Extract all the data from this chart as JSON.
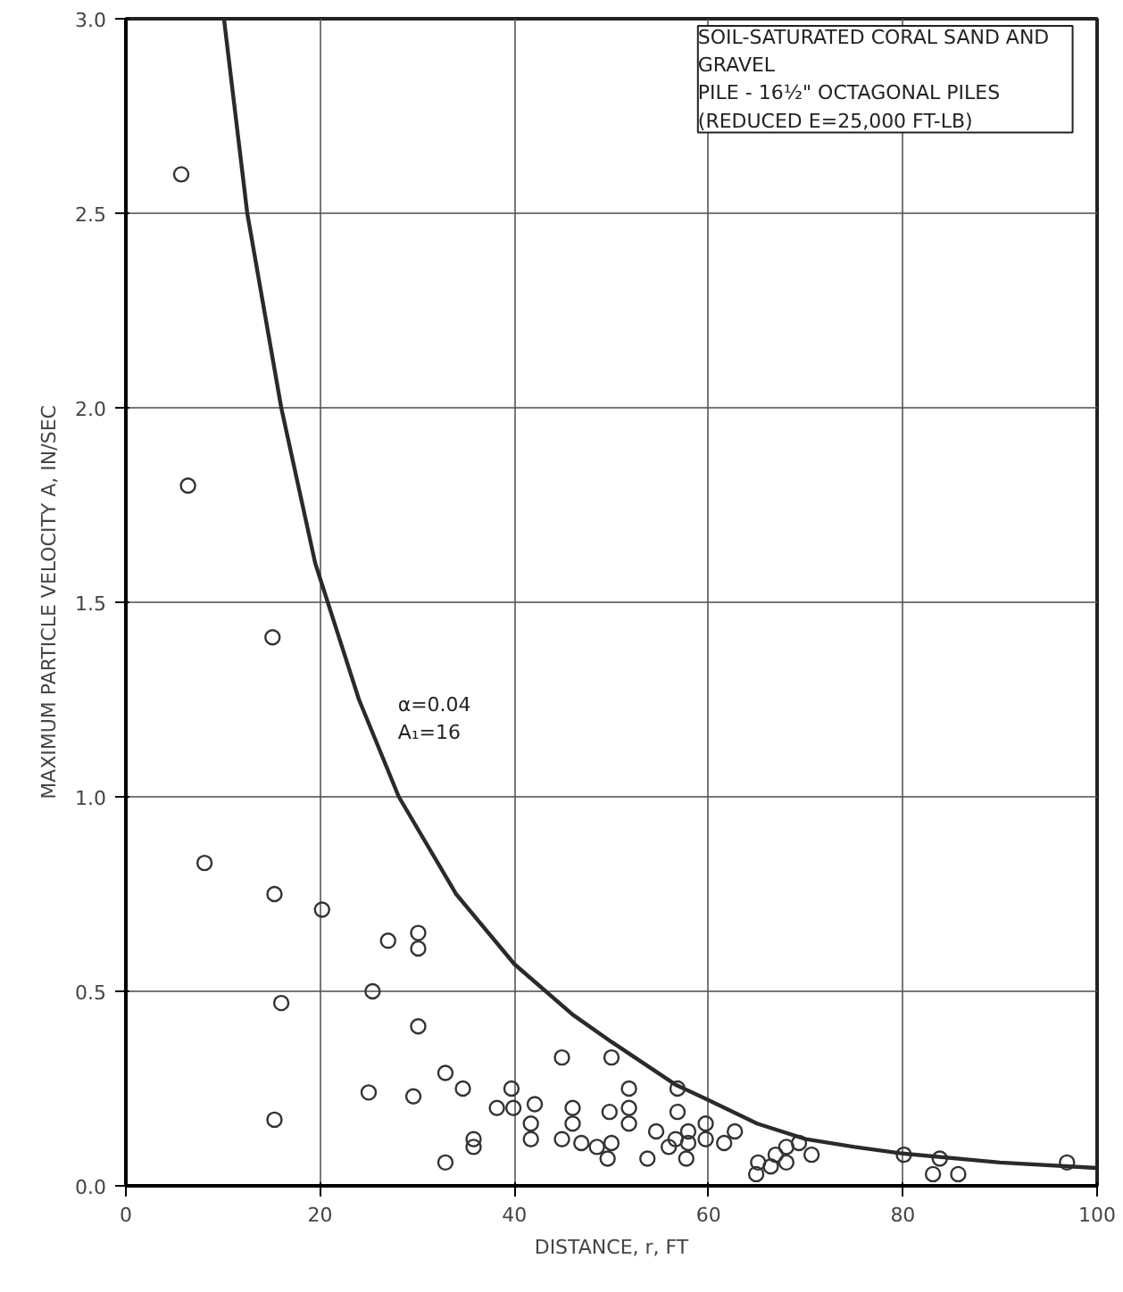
{
  "chart_data": {
    "type": "scatter",
    "xlabel": "DISTANCE, r, FT",
    "ylabel": "MAXIMUM PARTICLE VELOCITY A, IN/SEC",
    "xlim": [
      0,
      100
    ],
    "ylim": [
      0,
      3.0
    ],
    "xticks": [
      0,
      20,
      40,
      60,
      80,
      100
    ],
    "yticks": [
      {
        "value": 0,
        "label": "0.0"
      },
      {
        "value": 0.5,
        "label": "0.5"
      },
      {
        "value": 1.0,
        "label": "1.0"
      },
      {
        "value": 1.5,
        "label": "1.5"
      },
      {
        "value": 2.0,
        "label": "2.0"
      },
      {
        "value": 2.5,
        "label": "2.5"
      },
      {
        "value": 3.0,
        "label": "3.0"
      }
    ],
    "grid": true,
    "annotations": [
      "SOIL-SATURATED CORAL SAND AND\n      GRAVEL\nPILE - 16½\" OCTAGONAL PILES\n                (REDUCED E=25,000 FT-LB)",
      "α=0.04\nA₁=16"
    ],
    "series": [
      {
        "marker": "circle",
        "color": "#333333",
        "x": [
          5.7,
          6.4,
          15.1,
          8.1,
          15.3,
          20.2,
          27.0,
          30.1,
          30.1,
          25.4,
          16.0,
          30.1,
          44.9,
          32.9,
          34.7,
          25.0,
          29.6,
          15.3,
          39.7,
          38.2,
          39.9,
          42.1,
          41.7,
          41.7,
          46.0,
          46.0,
          44.9,
          46.9,
          48.5,
          35.8,
          35.8,
          32.9,
          50.0,
          51.8,
          51.8,
          51.8,
          49.8,
          56.8,
          56.8,
          50.0,
          49.6,
          53.7,
          54.6,
          55.9,
          56.6,
          57.9,
          57.9,
          57.7,
          59.7,
          59.7,
          61.6,
          62.7,
          65.1,
          64.9,
          66.4,
          66.9,
          68.0,
          68.0,
          69.3,
          70.6,
          80.1,
          83.8,
          83.1,
          85.7,
          96.9
        ],
        "values": [
          2.6,
          1.8,
          1.41,
          0.83,
          0.75,
          0.71,
          0.63,
          0.65,
          0.61,
          0.5,
          0.47,
          0.41,
          0.33,
          0.29,
          0.25,
          0.24,
          0.23,
          0.17,
          0.25,
          0.2,
          0.2,
          0.21,
          0.16,
          0.12,
          0.2,
          0.16,
          0.12,
          0.11,
          0.1,
          0.12,
          0.1,
          0.06,
          0.33,
          0.25,
          0.2,
          0.16,
          0.19,
          0.25,
          0.19,
          0.11,
          0.07,
          0.07,
          0.14,
          0.1,
          0.12,
          0.14,
          0.11,
          0.07,
          0.16,
          0.12,
          0.11,
          0.14,
          0.06,
          0.03,
          0.05,
          0.08,
          0.06,
          0.1,
          0.11,
          0.08,
          0.08,
          0.07,
          0.03,
          0.03,
          0.06
        ]
      },
      {
        "type": "line",
        "marker": "none",
        "line_style": "solid",
        "color": "#2a2a2a",
        "x": [
          10.1,
          12.5,
          16.0,
          19.5,
          24.0,
          28.1,
          34.0,
          40.0,
          46.0,
          50.0,
          56.6,
          60.0,
          65.0,
          70.0,
          75.0,
          80.0,
          90.0,
          100.0
        ],
        "values": [
          3.0,
          2.5,
          2.0,
          1.6,
          1.25,
          1.0,
          0.75,
          0.57,
          0.44,
          0.37,
          0.26,
          0.22,
          0.16,
          0.12,
          0.1,
          0.083,
          0.06,
          0.046
        ]
      }
    ]
  }
}
